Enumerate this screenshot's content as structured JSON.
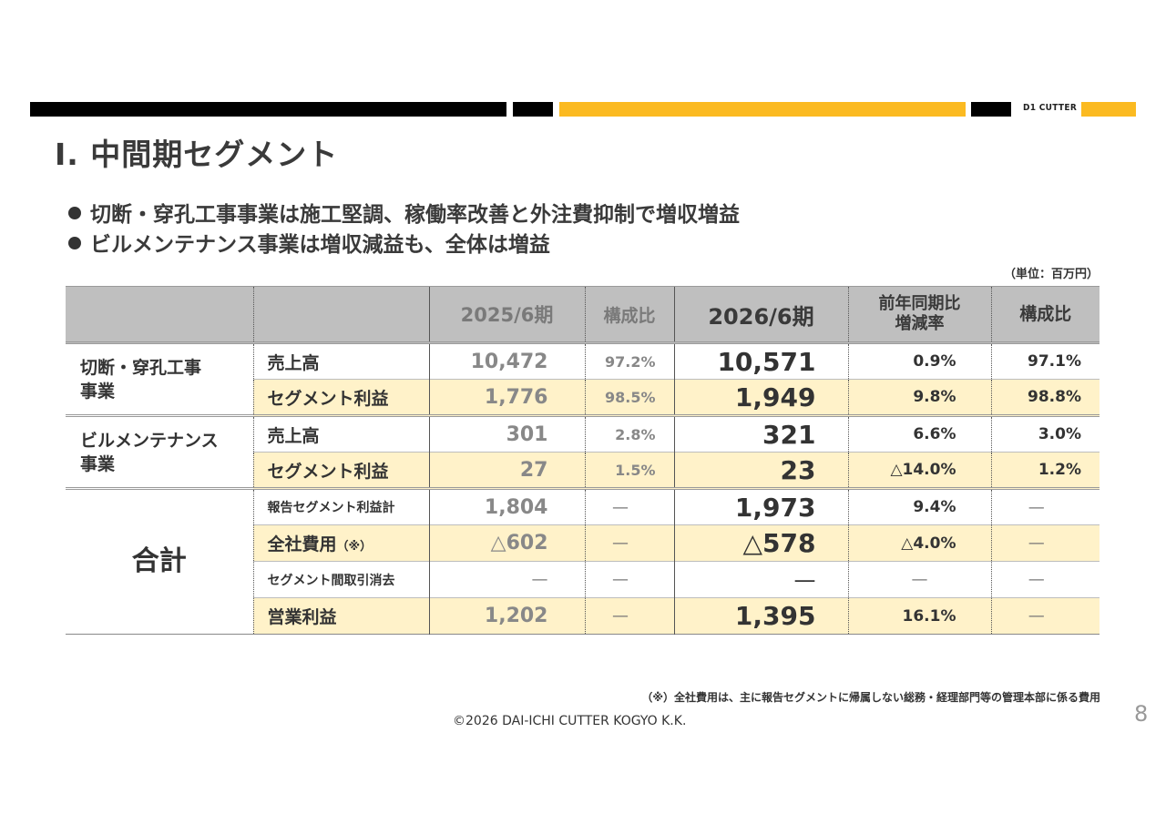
{
  "header": {
    "brand": "D1 CUTTER",
    "accent_color": "#fbba21",
    "bar_color": "#000000"
  },
  "slide": {
    "title": "Ⅰ. 中間期セグメント",
    "bullets": [
      "切断・穿孔工事事業は施工堅調、稼働率改善と外注費抑制で増収増益",
      "ビルメンテナンス事業は増収減益も、全体は増益"
    ],
    "unit": "（単位：百万円）",
    "page_number": "8"
  },
  "table": {
    "headers": {
      "cat": "",
      "item": "",
      "prev_period": "2025/6期",
      "prev_ratio": "構成比",
      "cur_period": "2026/6期",
      "yoy_line1": "前年同期比",
      "yoy_line2": "増減率",
      "cur_ratio": "構成比"
    },
    "groups": [
      {
        "category_line1": "切断・穿孔工事",
        "category_line2": "事業",
        "rows": [
          {
            "item": "売上高",
            "prev": "10,472",
            "prev_ratio": "97.2%",
            "cur": "10,571",
            "yoy": "0.9%",
            "cur_ratio": "97.1%"
          },
          {
            "item": "セグメント利益",
            "prev": "1,776",
            "prev_ratio": "98.5%",
            "cur": "1,949",
            "yoy": "9.8%",
            "cur_ratio": "98.8%"
          }
        ]
      },
      {
        "category_line1": "ビルメンテナンス",
        "category_line2": "事業",
        "rows": [
          {
            "item": "売上高",
            "prev": "301",
            "prev_ratio": "2.8%",
            "cur": "321",
            "yoy": "6.6%",
            "cur_ratio": "3.0%"
          },
          {
            "item": "セグメント利益",
            "prev": "27",
            "prev_ratio": "1.5%",
            "cur": "23",
            "yoy": "△14.0%",
            "cur_ratio": "1.2%"
          }
        ]
      },
      {
        "category_line1": "合計",
        "rows": [
          {
            "item": "報告セグメント利益計",
            "prev": "1,804",
            "prev_ratio": "—",
            "cur": "1,973",
            "yoy": "9.4%",
            "cur_ratio": "—"
          },
          {
            "item": "全社費用",
            "item_note": "（※）",
            "prev": "△602",
            "prev_ratio": "—",
            "cur": "△578",
            "yoy": "△4.0%",
            "cur_ratio": "—"
          },
          {
            "item": "セグメント間取引消去",
            "prev": "—",
            "prev_ratio": "—",
            "cur": "—",
            "yoy": "—",
            "cur_ratio": "—"
          },
          {
            "item": "営業利益",
            "prev": "1,202",
            "prev_ratio": "—",
            "cur": "1,395",
            "yoy": "16.1%",
            "cur_ratio": "—"
          }
        ]
      }
    ]
  },
  "footnote": "（※）全社費用は、主に報告セグメントに帰属しない総務・経理部門等の管理本部に係る費用",
  "copyright": "©2026 DAI-ICHI CUTTER KOGYO K.K."
}
